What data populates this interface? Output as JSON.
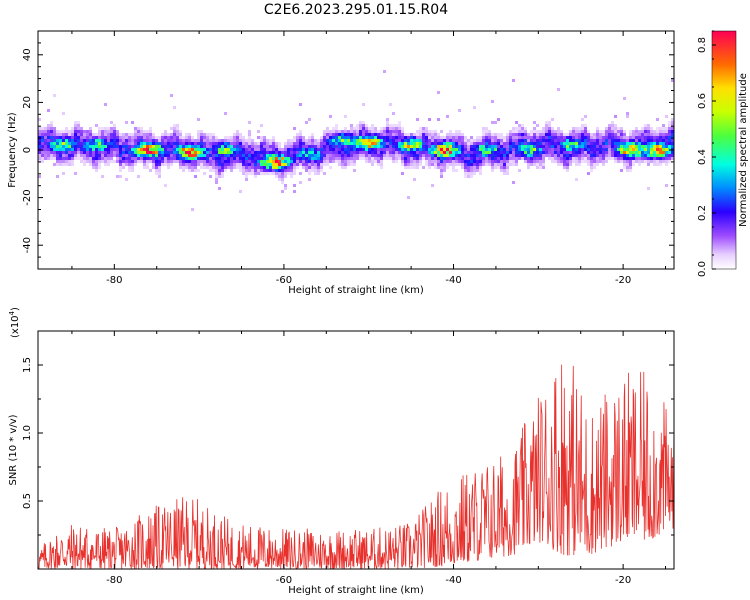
{
  "chart_data": [
    {
      "type": "heatmap",
      "title": "C2E6.2023.295.01.15.R04",
      "xlabel": "Height of straight line (km)",
      "ylabel": "Frequency (Hz)",
      "xlim": [
        -89,
        -14
      ],
      "ylim": [
        -50,
        50
      ],
      "xticks": [
        -80,
        -60,
        -40,
        -20
      ],
      "yticks": [
        -40,
        -20,
        0,
        20,
        40
      ],
      "colorbar": {
        "label": "Normalized spectral amplitude",
        "range": [
          0,
          0.85
        ],
        "ticks": [
          0.0,
          0.2,
          0.4,
          0.6,
          0.8
        ]
      },
      "ridge_center_hz": [
        {
          "x": -88,
          "f": 2
        },
        {
          "x": -84,
          "f": 2
        },
        {
          "x": -80,
          "f": 1
        },
        {
          "x": -76,
          "f": 0
        },
        {
          "x": -72,
          "f": 0
        },
        {
          "x": -68,
          "f": -2
        },
        {
          "x": -64,
          "f": -2
        },
        {
          "x": -61,
          "f": -4
        },
        {
          "x": -58,
          "f": -2
        },
        {
          "x": -55,
          "f": 0
        },
        {
          "x": -52,
          "f": 2
        },
        {
          "x": -49,
          "f": 3
        },
        {
          "x": -45,
          "f": 1
        },
        {
          "x": -42,
          "f": 0
        },
        {
          "x": -38,
          "f": -2
        },
        {
          "x": -34,
          "f": 0
        },
        {
          "x": -30,
          "f": 2
        },
        {
          "x": -26,
          "f": 1
        },
        {
          "x": -22,
          "f": 2
        },
        {
          "x": -18,
          "f": 1
        },
        {
          "x": -15,
          "f": 3
        }
      ],
      "peaks": [
        {
          "x": -86,
          "f": 2,
          "amp": 0.55
        },
        {
          "x": -82,
          "f": 2,
          "amp": 0.5
        },
        {
          "x": -76,
          "f": 0,
          "amp": 0.85
        },
        {
          "x": -71,
          "f": -1,
          "amp": 0.85
        },
        {
          "x": -67,
          "f": 0,
          "amp": 0.5
        },
        {
          "x": -61,
          "f": -5,
          "amp": 0.85
        },
        {
          "x": -57,
          "f": -2,
          "amp": 0.45
        },
        {
          "x": -53,
          "f": 4,
          "amp": 0.5
        },
        {
          "x": -50,
          "f": 3,
          "amp": 0.75
        },
        {
          "x": -45,
          "f": 2,
          "amp": 0.6
        },
        {
          "x": -41,
          "f": 0,
          "amp": 0.85
        },
        {
          "x": -36,
          "f": 0,
          "amp": 0.5
        },
        {
          "x": -31,
          "f": 0,
          "amp": 0.5
        },
        {
          "x": -26,
          "f": 2,
          "amp": 0.5
        },
        {
          "x": -19,
          "f": 0,
          "amp": 0.8
        },
        {
          "x": -16,
          "f": 0,
          "amp": 0.8
        }
      ]
    },
    {
      "type": "line",
      "xlabel": "Height of straight line (km)",
      "ylabel": "SNR (10 * v/v)",
      "yscale_label": "(x10",
      "yscale_exp": "4",
      "yscale_close": ")",
      "xlim": [
        -89,
        -14
      ],
      "ylim": [
        0,
        1.75
      ],
      "xticks": [
        -80,
        -60,
        -40,
        -20
      ],
      "yticks": [
        0.5,
        1.0,
        1.5
      ],
      "series": [
        {
          "color": "#e8302c",
          "envelope": [
            {
              "x": -89,
              "min": 0.0,
              "max": 0.15
            },
            {
              "x": -86,
              "min": 0.0,
              "max": 0.35
            },
            {
              "x": -80,
              "min": 0.0,
              "max": 0.3
            },
            {
              "x": -76,
              "min": 0.0,
              "max": 0.45
            },
            {
              "x": -71,
              "min": 0.0,
              "max": 0.55
            },
            {
              "x": -66,
              "min": 0.0,
              "max": 0.35
            },
            {
              "x": -60,
              "min": 0.0,
              "max": 0.3
            },
            {
              "x": -50,
              "min": 0.0,
              "max": 0.3
            },
            {
              "x": -45,
              "min": 0.0,
              "max": 0.35
            },
            {
              "x": -41,
              "min": 0.02,
              "max": 0.65
            },
            {
              "x": -38,
              "min": 0.05,
              "max": 0.75
            },
            {
              "x": -33,
              "min": 0.1,
              "max": 0.9
            },
            {
              "x": -30,
              "min": 0.2,
              "max": 1.3
            },
            {
              "x": -27,
              "min": 0.1,
              "max": 1.75
            },
            {
              "x": -24,
              "min": 0.1,
              "max": 1.2
            },
            {
              "x": -20,
              "min": 0.2,
              "max": 1.45
            },
            {
              "x": -17,
              "min": 0.2,
              "max": 1.45
            },
            {
              "x": -14,
              "min": 0.3,
              "max": 1.1
            }
          ]
        }
      ]
    }
  ]
}
